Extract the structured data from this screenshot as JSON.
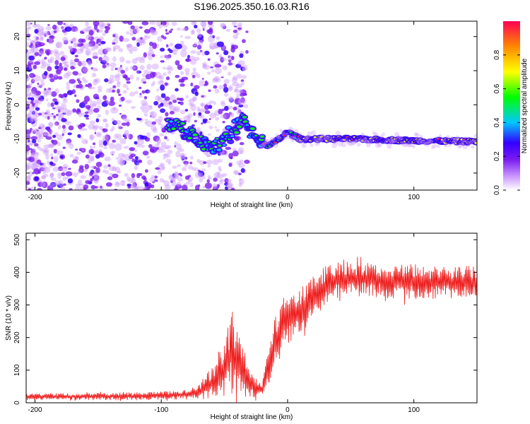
{
  "title": "S196.2025.350.16.03.R16",
  "colors": {
    "snr_line": "#ee1c1c",
    "frame": "#000000",
    "scatter": "#7a1cf0"
  },
  "chart_data": [
    {
      "type": "heatmap",
      "name": "spectrogram",
      "xlabel": "Height of straight line (km)",
      "ylabel": "Frequency (Hz)",
      "xlim": [
        -207,
        150
      ],
      "ylim": [
        -25,
        24.5
      ],
      "x_ticks": [
        -200,
        -100,
        0,
        100
      ],
      "y_ticks": [
        -20,
        -10,
        0,
        10,
        20
      ],
      "colorbar": {
        "label": "Normalized spectral amplitude",
        "range": [
          0,
          1
        ],
        "ticks": [
          "0.0",
          "0.2",
          "0.4",
          "0.6",
          "0.8"
        ],
        "colormap": [
          "#ffffff",
          "#cc99ff",
          "#7a1cf0",
          "#3300ff",
          "#00c8ff",
          "#00ff00",
          "#ffff00",
          "#ff8800",
          "#ff0055"
        ]
      },
      "description_trace": {
        "x": [
          -95,
          -80,
          -70,
          -60,
          -50,
          -45,
          -35,
          -30,
          -20,
          -15,
          -10,
          0,
          10,
          20,
          50,
          100,
          150
        ],
        "y": [
          -5,
          -8,
          -10,
          -13,
          -10,
          -8,
          -4,
          -8,
          -11,
          -12,
          -11,
          -8,
          -10,
          -10,
          -10,
          -10.5,
          -10.8
        ]
      }
    },
    {
      "type": "line",
      "name": "snr",
      "xlabel": "Height of straight line (km)",
      "ylabel": "SNR (10 * v/v)",
      "xlim": [
        -207,
        150
      ],
      "ylim": [
        0,
        520
      ],
      "x_ticks": [
        -200,
        -100,
        0,
        100
      ],
      "y_ticks": [
        0,
        100,
        200,
        300,
        400,
        500
      ],
      "envelope": {
        "x": [
          -207,
          -120,
          -80,
          -70,
          -60,
          -50,
          -45,
          -40,
          -35,
          -30,
          -25,
          -20,
          -15,
          -10,
          -5,
          0,
          10,
          20,
          30,
          40,
          60,
          80,
          100,
          120,
          150
        ],
        "mid": [
          18,
          20,
          25,
          35,
          60,
          110,
          150,
          130,
          90,
          60,
          45,
          40,
          110,
          180,
          230,
          250,
          280,
          320,
          360,
          380,
          380,
          375,
          370,
          370,
          370
        ],
        "amp": [
          10,
          12,
          15,
          25,
          50,
          90,
          120,
          100,
          80,
          50,
          30,
          25,
          60,
          80,
          90,
          80,
          70,
          70,
          60,
          60,
          55,
          55,
          60,
          50,
          50
        ]
      }
    }
  ]
}
